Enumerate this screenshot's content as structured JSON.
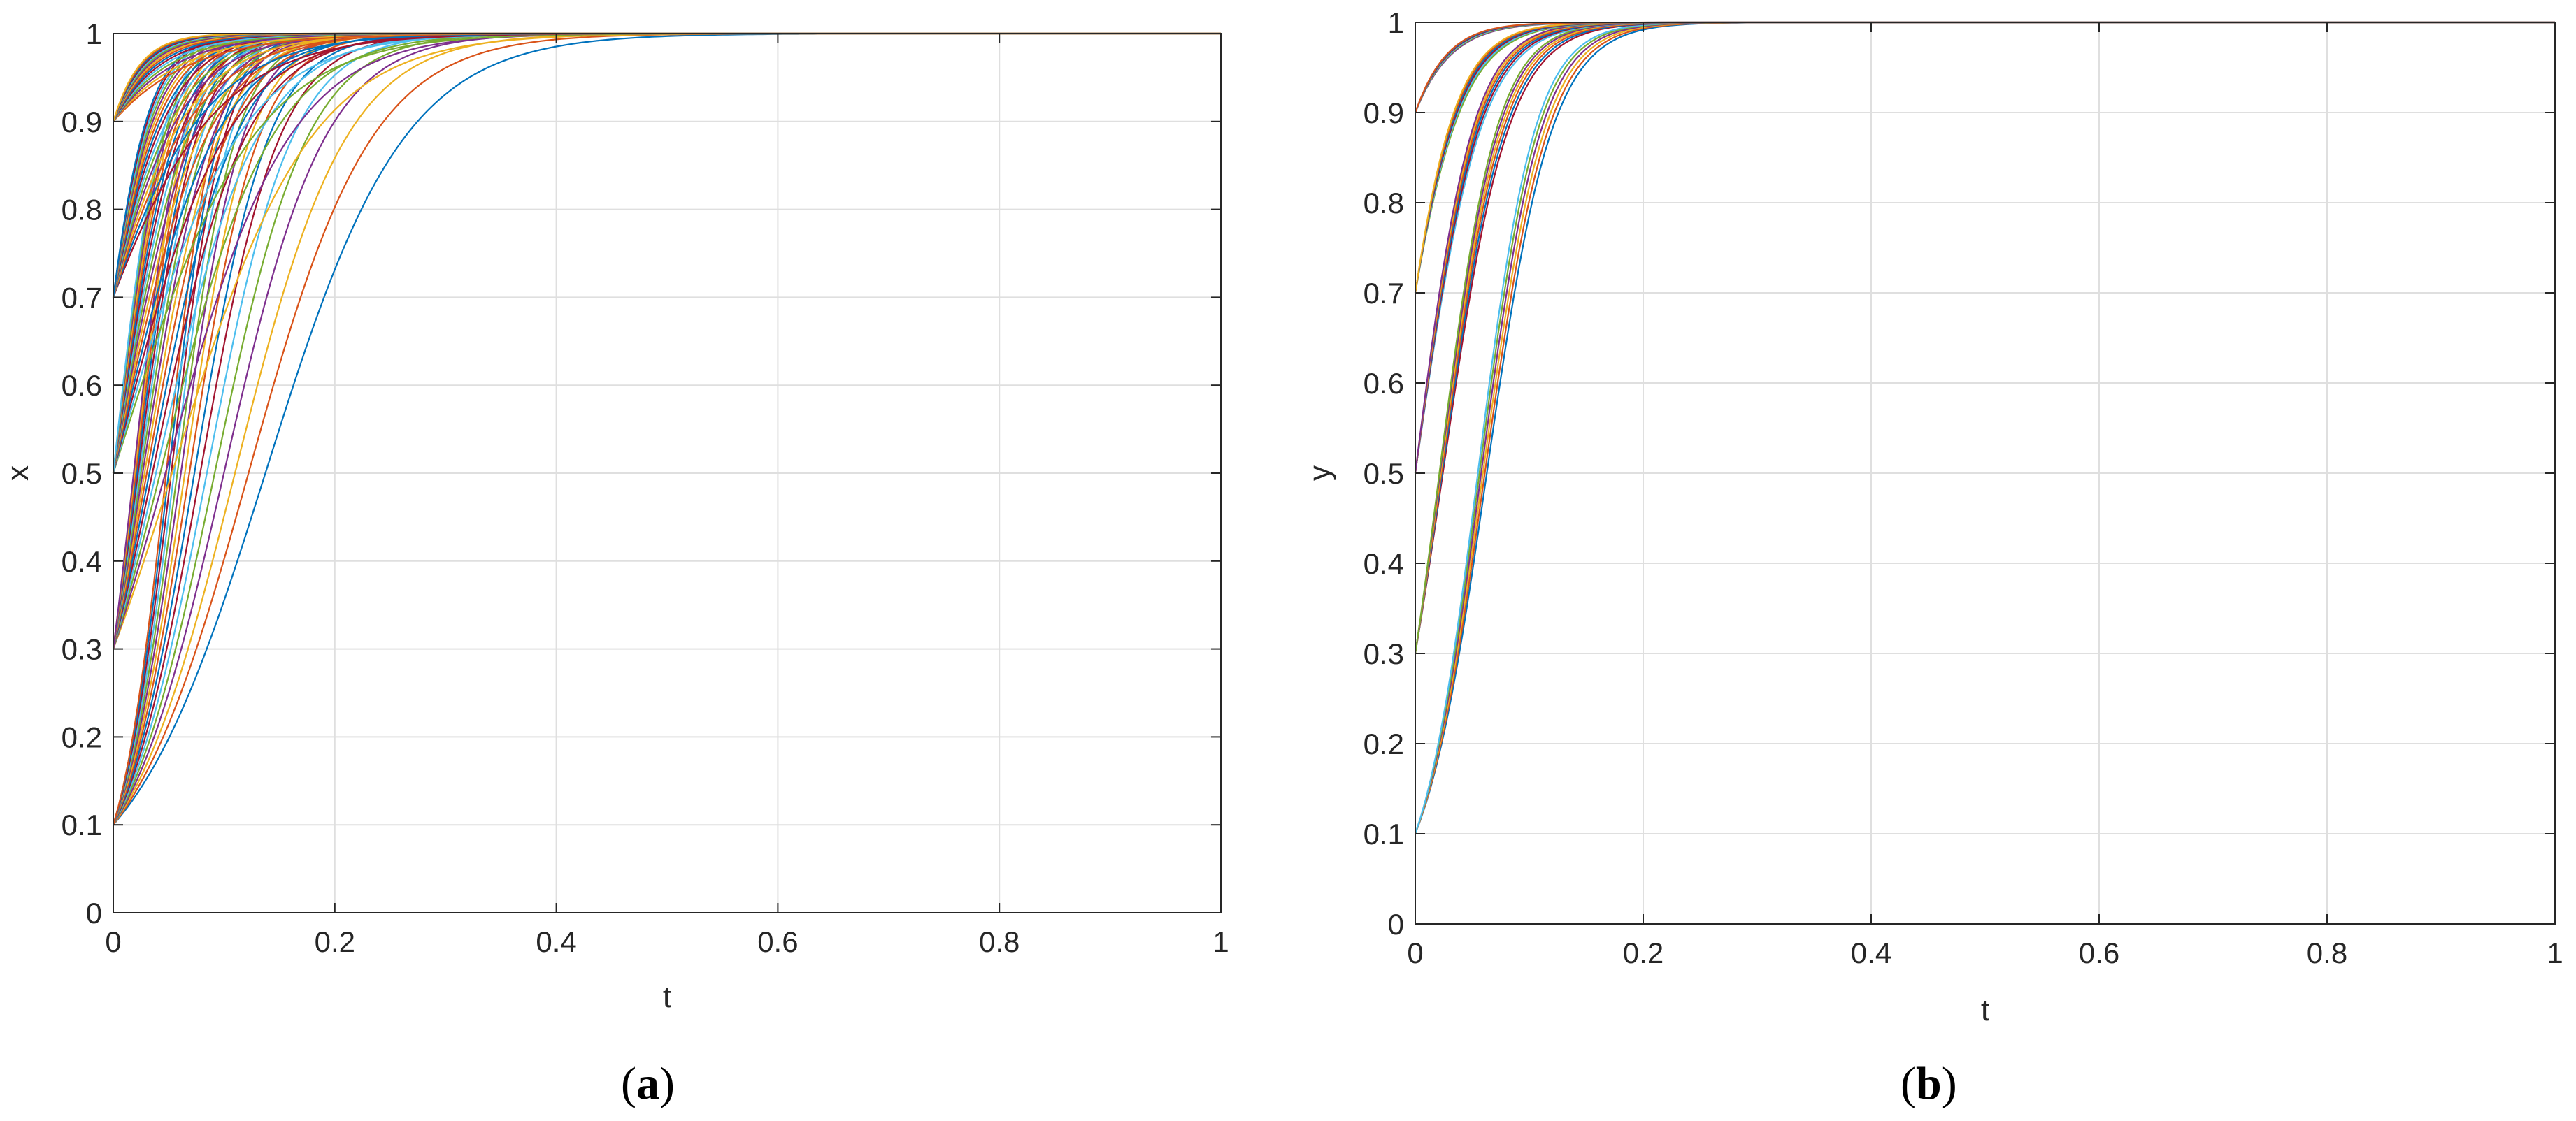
{
  "figure": {
    "panels": [
      {
        "label_open": "(",
        "label_letter": "a",
        "label_close": ")"
      },
      {
        "label_open": "(",
        "label_letter": "b",
        "label_close": ")"
      }
    ]
  },
  "colors": [
    "#0072BD",
    "#D95319",
    "#EDB120",
    "#7E2F8E",
    "#77AC30",
    "#4DBEEE",
    "#A2142F"
  ],
  "chart_data": [
    {
      "type": "line",
      "title": "",
      "xlabel": "t",
      "ylabel": "x",
      "xlim": [
        0,
        1
      ],
      "ylim": [
        0,
        1
      ],
      "xticks": [
        0,
        0.2,
        0.4,
        0.6,
        0.8,
        1
      ],
      "xtick_labels": [
        "0",
        "0.2",
        "0.4",
        "0.6",
        "0.8",
        "1"
      ],
      "yticks": [
        0,
        0.1,
        0.2,
        0.3,
        0.4,
        0.5,
        0.6,
        0.7,
        0.8,
        0.9,
        1
      ],
      "ytick_labels": [
        "0",
        "0.1",
        "0.2",
        "0.3",
        "0.4",
        "0.5",
        "0.6",
        "0.7",
        "0.8",
        "0.9",
        "1"
      ],
      "grid": true,
      "legend": "none",
      "description": "Family of trajectories x(t) converging to 1",
      "initial_values": [
        0.1,
        0.3,
        0.5,
        0.7,
        0.9
      ],
      "growth_rates": [
        16,
        18,
        20,
        22,
        24,
        26,
        28,
        30,
        32,
        34,
        36,
        38,
        40,
        42,
        44,
        46
      ],
      "series_rule": "x(t) = 1 / (1 + ((1 - x0) / x0) * exp(-r * t))"
    },
    {
      "type": "line",
      "title": "",
      "xlabel": "t",
      "ylabel": "y",
      "xlim": [
        0,
        1
      ],
      "ylim": [
        0,
        1
      ],
      "xticks": [
        0,
        0.2,
        0.4,
        0.6,
        0.8,
        1
      ],
      "xtick_labels": [
        "0",
        "0.2",
        "0.4",
        "0.6",
        "0.8",
        "1"
      ],
      "yticks": [
        0,
        0.1,
        0.2,
        0.3,
        0.4,
        0.5,
        0.6,
        0.7,
        0.8,
        0.9,
        1
      ],
      "ytick_labels": [
        "0",
        "0.1",
        "0.2",
        "0.3",
        "0.4",
        "0.5",
        "0.6",
        "0.7",
        "0.8",
        "0.9",
        "1"
      ],
      "grid": true,
      "legend": "none",
      "description": "Family of trajectories y(t) converging to 1, tightly bundled per initial value",
      "initial_values": [
        0.1,
        0.3,
        0.5,
        0.7,
        0.9
      ],
      "growth_rates": [
        35,
        36,
        37,
        38,
        39,
        40
      ],
      "series_rule": "y(t) = 1 / (1 + ((1 - y0) / y0) * exp(-r * t))"
    }
  ]
}
